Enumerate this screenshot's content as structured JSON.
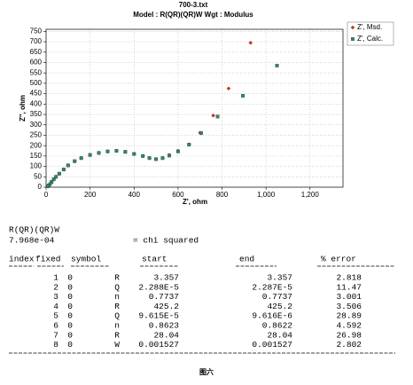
{
  "chart_data": {
    "type": "scatter",
    "title": "700-3.txt",
    "subtitle": "Model : R(QR)(QR)W    Wgt : Modulus",
    "x_label": "Z', ohm",
    "y_label": "Z'', ohm",
    "xlim": [
      0,
      1350
    ],
    "ylim": [
      0,
      760
    ],
    "xticks": [
      0,
      200,
      400,
      600,
      800,
      {
        "value": 1000,
        "label": "1,000"
      },
      {
        "value": 1200,
        "label": "1,200"
      }
    ],
    "yticks": [
      0,
      50,
      100,
      150,
      200,
      250,
      300,
      350,
      400,
      450,
      500,
      550,
      600,
      650,
      700,
      750
    ],
    "grid": true,
    "legend": "outside-right",
    "series": [
      {
        "name": "Z', Msd.",
        "color": "#c0392b",
        "marker": "diamond",
        "x": [
          930,
          830,
          760,
          700,
          650,
          600,
          560,
          530,
          500,
          470,
          440,
          400,
          360,
          320,
          280,
          240,
          200,
          160,
          130,
          100,
          80,
          60,
          45,
          35,
          25,
          18,
          12,
          8
        ],
        "values": [
          695,
          475,
          345,
          262,
          205,
          175,
          155,
          140,
          135,
          140,
          150,
          160,
          170,
          175,
          172,
          165,
          155,
          140,
          125,
          105,
          85,
          65,
          50,
          38,
          25,
          15,
          8,
          4
        ]
      },
      {
        "name": "Z', Calc.",
        "color": "#2e8b57",
        "marker": "square",
        "x": [
          1050,
          895,
          780,
          705,
          650,
          600,
          560,
          530,
          500,
          470,
          440,
          400,
          360,
          320,
          280,
          240,
          200,
          160,
          130,
          100,
          80,
          60,
          45,
          35,
          25,
          18,
          12,
          8
        ],
        "values": [
          585,
          440,
          340,
          260,
          205,
          172,
          152,
          140,
          135,
          140,
          150,
          160,
          170,
          175,
          172,
          165,
          155,
          140,
          125,
          105,
          85,
          65,
          50,
          38,
          25,
          15,
          8,
          4
        ]
      }
    ]
  },
  "report": {
    "model": "R(QR)(QR)W",
    "chi_value": "7.968e-04",
    "chi_label": "= chi squared",
    "columns": [
      "index",
      "fixed",
      "symbol",
      "start",
      "end",
      "% error"
    ],
    "rows": [
      [
        "1",
        "0",
        "R",
        "3.357",
        "3.357",
        "2.818"
      ],
      [
        "2",
        "0",
        "Q",
        "2.288E-5",
        "2.287E-5",
        "11.47"
      ],
      [
        "3",
        "0",
        "n",
        "0.7737",
        "0.7737",
        "3.001"
      ],
      [
        "4",
        "0",
        "R",
        "425.2",
        "425.2",
        "3.506"
      ],
      [
        "5",
        "0",
        "Q",
        "9.615E-5",
        "9.616E-6",
        "28.89"
      ],
      [
        "6",
        "0",
        "n",
        "0.8623",
        "0.8622",
        "4.592"
      ],
      [
        "7",
        "0",
        "R",
        "28.04",
        "28.04",
        "26.98"
      ],
      [
        "8",
        "0",
        "W",
        "0.001527",
        "0.001527",
        "2.802"
      ]
    ]
  },
  "caption": "图六"
}
